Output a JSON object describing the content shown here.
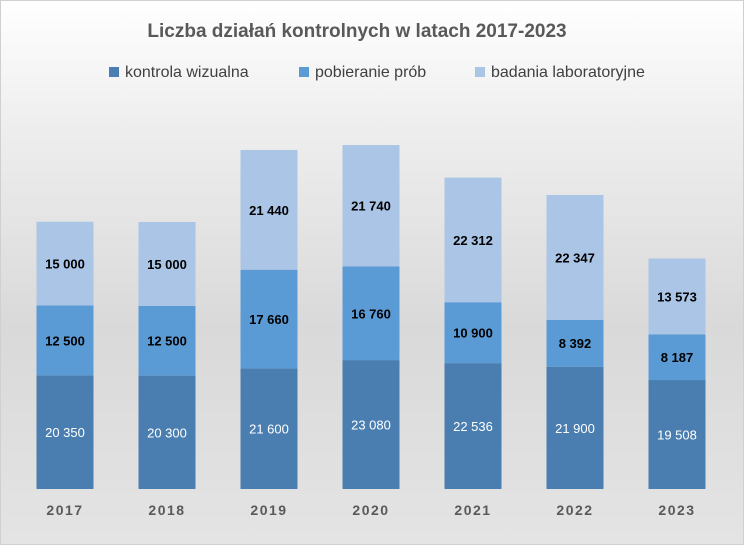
{
  "chart_data": {
    "type": "bar",
    "stacked": true,
    "title": "Liczba działań kontrolnych w latach 2017-2023",
    "categories": [
      "2017",
      "2018",
      "2019",
      "2020",
      "2021",
      "2022",
      "2023"
    ],
    "series": [
      {
        "name": "kontrola wizualna",
        "color": "#4a7eb0",
        "label_color": "#ffffff",
        "values": [
          20350,
          20300,
          21600,
          23080,
          22536,
          21900,
          19508
        ],
        "labels": [
          "20 350",
          "20 300",
          "21 600",
          "23 080",
          "22 536",
          "21 900",
          "19 508"
        ]
      },
      {
        "name": "pobieranie prób",
        "color": "#5b9bd5",
        "label_color": "#000000",
        "values": [
          12500,
          12500,
          17660,
          16760,
          10900,
          8392,
          8187
        ],
        "labels": [
          "12 500",
          "12 500",
          "17 660",
          "16 760",
          "10 900",
          "8 392",
          "8 187"
        ]
      },
      {
        "name": "badania laboratoryjne",
        "color": "#abc5e6",
        "label_color": "#000000",
        "values": [
          15000,
          15000,
          21440,
          21740,
          22312,
          22347,
          13573
        ],
        "labels": [
          "15 000",
          "15 000",
          "21 440",
          "21 740",
          "22 312",
          "22 347",
          "13 573"
        ]
      }
    ],
    "xlabel": "",
    "ylabel": "",
    "ylim": [
      0,
      70000
    ],
    "grid": false,
    "legend": "top"
  }
}
